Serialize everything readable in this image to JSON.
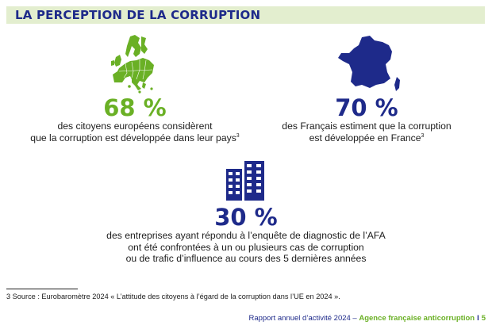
{
  "header": {
    "title": "LA PERCEPTION DE LA CORRUPTION"
  },
  "stats": [
    {
      "value": "68 %",
      "line1": "des citoyens européens considèrent",
      "line2": "que la corruption est développée dans leur pays",
      "note": "3",
      "icon": "europe-map-icon",
      "color": "#6ab025"
    },
    {
      "value": "70 %",
      "line1": "des Français estiment que la corruption",
      "line2": "est développée en France",
      "note": "3",
      "icon": "france-map-icon",
      "color": "#1e2a8a"
    },
    {
      "value": "30 %",
      "line1": "des entreprises ayant répondu à l’enquête de diagnostic de l’AFA",
      "line2": "ont été confrontées à un ou plusieurs cas de corruption",
      "line3": "ou de trafic d’influence au cours des 5 dernières années",
      "icon": "office-buildings-icon",
      "color": "#1e2a8a"
    }
  ],
  "footnote": {
    "text": "3  Source : Eurobaromètre 2024 « L’attitude des citoyens à l’égard de la corruption dans l’UE en 2024 »."
  },
  "footer": {
    "report": "Rapport annuel d’activité 2024 – ",
    "agency": "Agence française anticorruption",
    "separator": "I",
    "page": "5"
  }
}
